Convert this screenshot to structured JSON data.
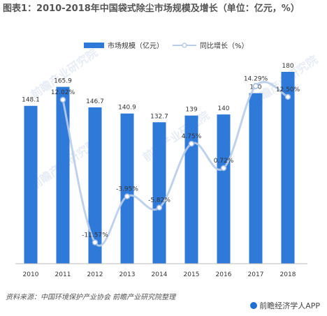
{
  "title": "图表1：2010-2018年中国袋式除尘市场规模及增长（单位：亿元，%）",
  "chart_data": {
    "type": "bar",
    "categories": [
      "2010",
      "2011",
      "2012",
      "2013",
      "2014",
      "2015",
      "2016",
      "2017",
      "2018"
    ],
    "series": [
      {
        "name": "市场规模（亿元）",
        "type": "bar",
        "values": [
          148.1,
          165.9,
          146.7,
          140.9,
          132.7,
          139,
          140,
          160,
          180
        ],
        "labels": [
          "148.1",
          "165.9",
          "146.7",
          "140.9",
          "132.7",
          "139",
          "140",
          "160",
          "180"
        ],
        "color": "#2f79d9"
      },
      {
        "name": "同比增长（%）",
        "type": "line",
        "values": [
          null,
          12.02,
          -11.57,
          -3.95,
          -5.82,
          4.75,
          0.72,
          14.29,
          12.5
        ],
        "labels": [
          "",
          "12.02%",
          "-11.57%",
          "-3.95%",
          "-5.82%",
          "4.75%",
          "0.72%",
          "14.29%",
          "12.50%"
        ],
        "color": "#b9cde8"
      }
    ],
    "legend_position": "top"
  },
  "source": "资料来源：中国环境保护产业协会  前瞻产业研究院整理",
  "brand": "前瞻经济学人APP",
  "watermark": "前瞻产业研究院"
}
